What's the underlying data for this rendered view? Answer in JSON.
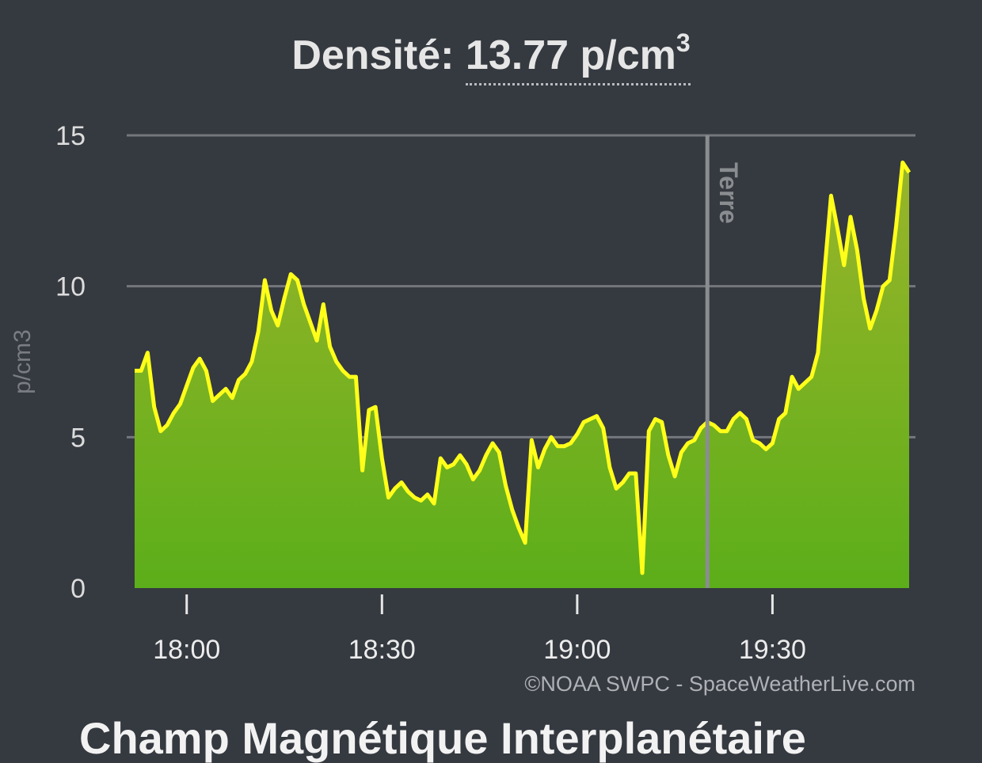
{
  "header": {
    "label": "Densité:",
    "value": "13.77 p/cm",
    "superscript": "3"
  },
  "chart_data": {
    "type": "area",
    "title": "Densité: 13.77 p/cm3",
    "ylabel": "p/cm3",
    "xlabel": "",
    "ylim": [
      0,
      15
    ],
    "yticks": [
      0,
      5,
      10,
      15
    ],
    "xlim": [
      "17:52",
      "19:51"
    ],
    "xticks": [
      "18:00",
      "18:30",
      "19:00",
      "19:30"
    ],
    "grid": true,
    "colors": {
      "line": "#ffff1a",
      "fill_top": "#9ab52a",
      "fill_bottom": "#5cae1a",
      "grid": "#74777c"
    },
    "vertical_marker": {
      "x": "19:20",
      "label": "Terre"
    },
    "credit": "©NOAA SWPC - SpaceWeatherLive.com",
    "series": [
      {
        "x": [
          "17:52",
          "17:53",
          "17:54",
          "17:55",
          "17:56",
          "17:57",
          "17:58",
          "17:59",
          "18:00",
          "18:01",
          "18:02",
          "18:03",
          "18:04",
          "18:05",
          "18:06",
          "18:07",
          "18:08",
          "18:09",
          "18:10",
          "18:11",
          "18:12",
          "18:13",
          "18:14",
          "18:15",
          "18:16",
          "18:17",
          "18:18",
          "18:19",
          "18:20",
          "18:21",
          "18:22",
          "18:23",
          "18:24",
          "18:25",
          "18:26",
          "18:27",
          "18:28",
          "18:29",
          "18:30",
          "18:31",
          "18:32",
          "18:33",
          "18:34",
          "18:35",
          "18:36",
          "18:37",
          "18:38",
          "18:39",
          "18:40",
          "18:41",
          "18:42",
          "18:43",
          "18:44",
          "18:45",
          "18:46",
          "18:47",
          "18:48",
          "18:49",
          "18:50",
          "18:51",
          "18:52",
          "18:53",
          "18:54",
          "18:55",
          "18:56",
          "18:57",
          "18:58",
          "18:59",
          "19:00",
          "19:01",
          "19:02",
          "19:03",
          "19:04",
          "19:05",
          "19:06",
          "19:07",
          "19:08",
          "19:09",
          "19:10",
          "19:11",
          "19:12",
          "19:13",
          "19:14",
          "19:15",
          "19:16",
          "19:17",
          "19:18",
          "19:19",
          "19:20",
          "19:21",
          "19:22",
          "19:23",
          "19:24",
          "19:25",
          "19:26",
          "19:27",
          "19:28",
          "19:29",
          "19:30",
          "19:31",
          "19:32",
          "19:33",
          "19:34",
          "19:35",
          "19:36",
          "19:37",
          "19:38",
          "19:39",
          "19:40",
          "19:41",
          "19:42",
          "19:43",
          "19:44",
          "19:45",
          "19:46",
          "19:47",
          "19:48",
          "19:49",
          "19:50",
          "19:51"
        ],
        "values": [
          7.2,
          7.2,
          7.8,
          6.0,
          5.2,
          5.4,
          5.8,
          6.1,
          6.7,
          7.3,
          7.6,
          7.2,
          6.2,
          6.4,
          6.6,
          6.3,
          6.9,
          7.1,
          7.5,
          8.5,
          10.2,
          9.2,
          8.7,
          9.6,
          10.4,
          10.2,
          9.4,
          8.8,
          8.2,
          9.4,
          8.0,
          7.5,
          7.2,
          7.0,
          7.0,
          3.9,
          5.9,
          6.0,
          4.3,
          3.0,
          3.3,
          3.5,
          3.2,
          3.0,
          2.9,
          3.1,
          2.8,
          4.3,
          4.0,
          4.1,
          4.4,
          4.1,
          3.6,
          3.9,
          4.4,
          4.8,
          4.5,
          3.4,
          2.6,
          2.0,
          1.5,
          4.9,
          4.0,
          4.6,
          5.0,
          4.7,
          4.7,
          4.8,
          5.1,
          5.5,
          5.6,
          5.7,
          5.3,
          4.0,
          3.3,
          3.5,
          3.8,
          3.8,
          0.5,
          5.2,
          5.6,
          5.5,
          4.4,
          3.7,
          4.5,
          4.8,
          4.9,
          5.3,
          5.5,
          5.4,
          5.2,
          5.2,
          5.6,
          5.8,
          5.6,
          4.9,
          4.8,
          4.6,
          4.8,
          5.6,
          5.8,
          7.0,
          6.6,
          6.8,
          7.0,
          7.8,
          10.5,
          13.0,
          11.9,
          10.7,
          12.3,
          11.2,
          9.6,
          8.6,
          9.2,
          10.0,
          10.2,
          12.0,
          14.1,
          13.77
        ]
      }
    ]
  },
  "next_section_title": "Champ Magnétique Interplanétaire"
}
